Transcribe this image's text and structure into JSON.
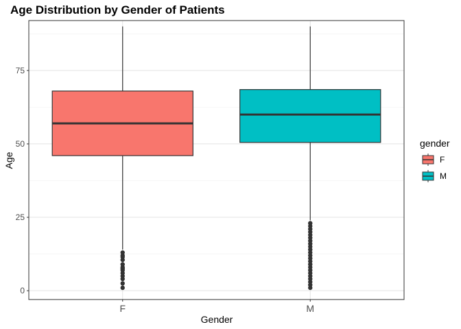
{
  "chart_data": {
    "type": "boxplot",
    "title": "Age Distribution by Gender of Patients",
    "xlabel": "Gender",
    "ylabel": "Age",
    "ylim": [
      -3,
      92
    ],
    "yticks": [
      0,
      25,
      50,
      75
    ],
    "grid": true,
    "legend": {
      "title": "gender",
      "position": "right"
    },
    "categories": [
      "F",
      "M"
    ],
    "boxes": [
      {
        "name": "F",
        "color": "#F8766D",
        "min": 14,
        "q1": 46,
        "median": 57,
        "q3": 68,
        "max": 90,
        "outliers": [
          1,
          2.5,
          4,
          5,
          6,
          7,
          7.5,
          8,
          9,
          10.5,
          11.5,
          12,
          13
        ]
      },
      {
        "name": "M",
        "color": "#00BFC4",
        "min": 24,
        "q1": 50.5,
        "median": 60,
        "q3": 68.5,
        "max": 90,
        "outliers": [
          1,
          2,
          3,
          4,
          5,
          6,
          7,
          8,
          9,
          10,
          11,
          12,
          13,
          14,
          15,
          16,
          17,
          18,
          19,
          20,
          21,
          22,
          23
        ]
      }
    ]
  }
}
